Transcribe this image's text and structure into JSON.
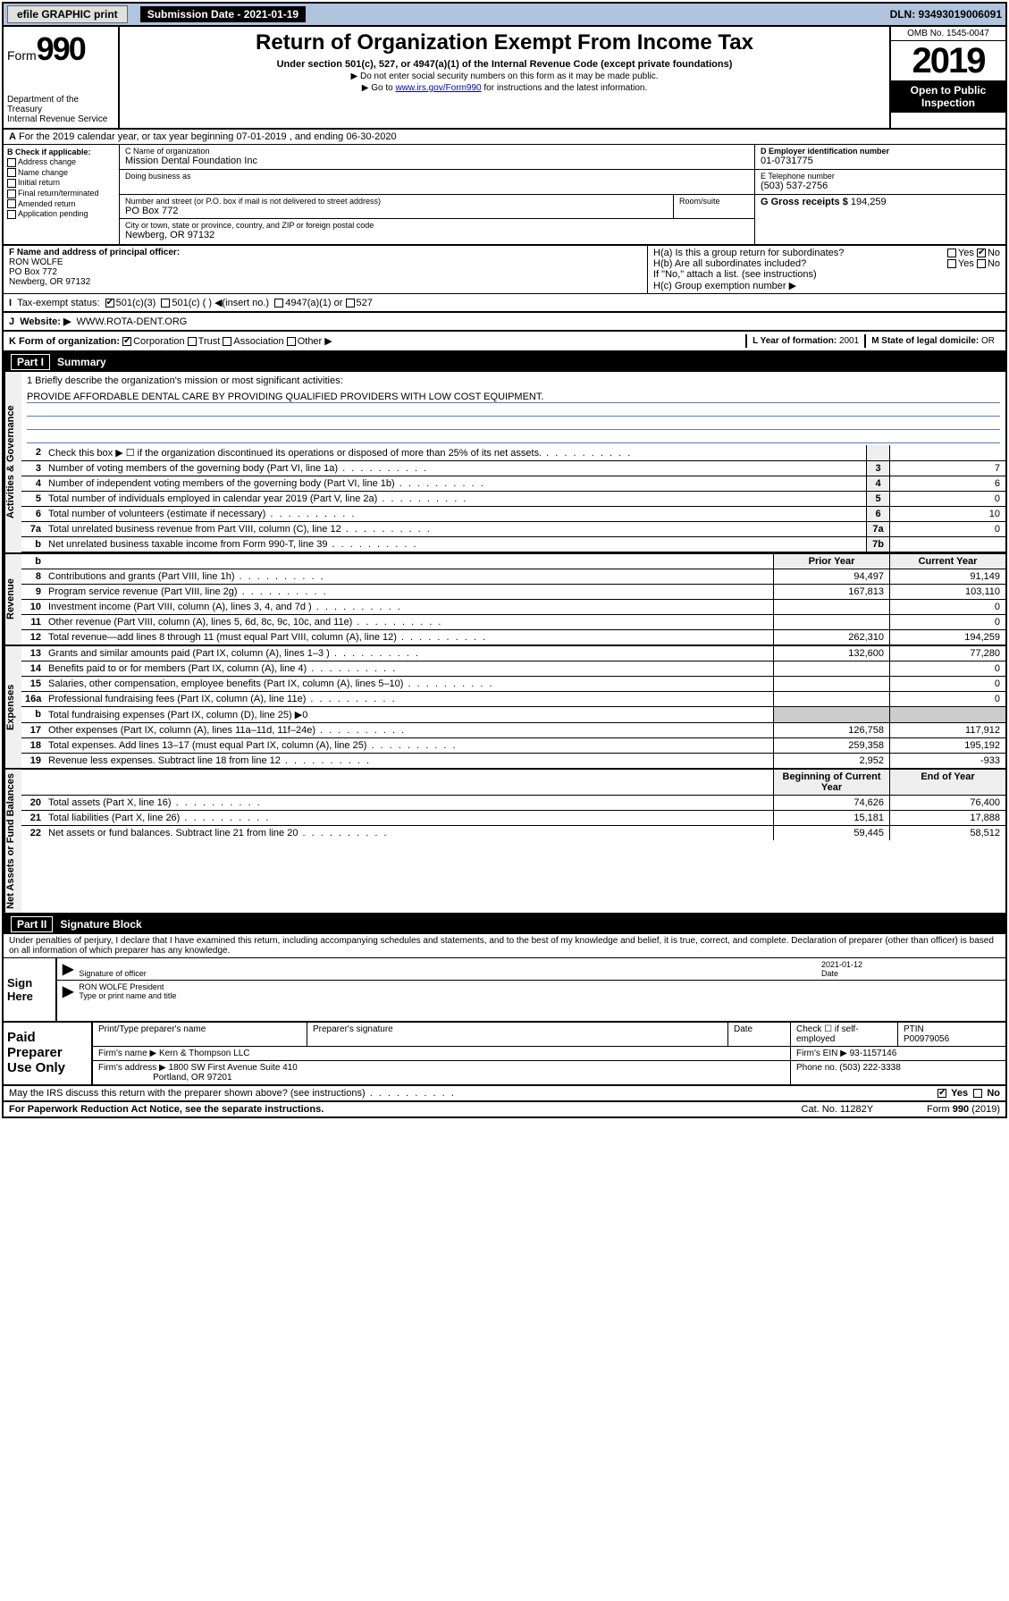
{
  "topbar": {
    "efile": "efile GRAPHIC print",
    "submission_label": "Submission Date - 2021-01-19",
    "dln": "DLN: 93493019006091"
  },
  "header": {
    "form_prefix": "Form",
    "form_number": "990",
    "title": "Return of Organization Exempt From Income Tax",
    "subtitle": "Under section 501(c), 527, or 4947(a)(1) of the Internal Revenue Code (except private foundations)",
    "note1": "▶ Do not enter social security numbers on this form as it may be made public.",
    "note2_pre": "▶ Go to ",
    "note2_link": "www.irs.gov/Form990",
    "note2_post": " for instructions and the latest information.",
    "dept": "Department of the Treasury\nInternal Revenue Service",
    "omb": "OMB No. 1545-0047",
    "year": "2019",
    "open": "Open to Public Inspection"
  },
  "row_a": "For the 2019 calendar year, or tax year beginning 07-01-2019    , and ending 06-30-2020",
  "block_b": {
    "title": "B Check if applicable:",
    "items": [
      "Address change",
      "Name change",
      "Initial return",
      "Final return/terminated",
      "Amended return",
      "Application pending"
    ]
  },
  "block_c": {
    "name_label": "C Name of organization",
    "name": "Mission Dental Foundation Inc",
    "dba_label": "Doing business as",
    "dba": "",
    "addr_label": "Number and street (or P.O. box if mail is not delivered to street address)",
    "addr": "PO Box 772",
    "suite_label": "Room/suite",
    "city_label": "City or town, state or province, country, and ZIP or foreign postal code",
    "city": "Newberg, OR  97132"
  },
  "block_d": {
    "label": "D Employer identification number",
    "value": "01-0731775"
  },
  "block_e": {
    "label": "E Telephone number",
    "value": "(503) 537-2756"
  },
  "block_g": {
    "label": "G Gross receipts $",
    "value": "194,259"
  },
  "block_f": {
    "label": "F  Name and address of principal officer:",
    "name": "RON WOLFE",
    "addr1": "PO Box 772",
    "addr2": "Newberg, OR  97132"
  },
  "block_h": {
    "a": "H(a)  Is this a group return for subordinates?",
    "b": "H(b)  Are all subordinates included?",
    "note": "If \"No,\" attach a list. (see instructions)",
    "c": "H(c)  Group exemption number ▶"
  },
  "row_i": {
    "label": "Tax-exempt status:",
    "opts": [
      "501(c)(3)",
      "501(c) (  ) ◀(insert no.)",
      "4947(a)(1) or",
      "527"
    ]
  },
  "row_j": {
    "label": "Website: ▶",
    "value": "WWW.ROTA-DENT.ORG"
  },
  "row_k": {
    "label": "K Form of organization:",
    "opts": [
      "Corporation",
      "Trust",
      "Association",
      "Other ▶"
    ],
    "l_label": "L Year of formation:",
    "l_value": "2001",
    "m_label": "M State of legal domicile:",
    "m_value": "OR"
  },
  "part1": {
    "num": "Part I",
    "title": "Summary"
  },
  "mission": {
    "q": "1  Briefly describe the organization's mission or most significant activities:",
    "a": "PROVIDE AFFORDABLE DENTAL CARE BY PROVIDING QUALIFIED PROVIDERS WITH LOW COST EQUIPMENT."
  },
  "gov_lines": [
    {
      "n": "2",
      "d": "Check this box ▶ ☐  if the organization discontinued its operations or disposed of more than 25% of its net assets.",
      "box": "",
      "v": ""
    },
    {
      "n": "3",
      "d": "Number of voting members of the governing body (Part VI, line 1a)",
      "box": "3",
      "v": "7"
    },
    {
      "n": "4",
      "d": "Number of independent voting members of the governing body (Part VI, line 1b)",
      "box": "4",
      "v": "6"
    },
    {
      "n": "5",
      "d": "Total number of individuals employed in calendar year 2019 (Part V, line 2a)",
      "box": "5",
      "v": "0"
    },
    {
      "n": "6",
      "d": "Total number of volunteers (estimate if necessary)",
      "box": "6",
      "v": "10"
    },
    {
      "n": "7a",
      "d": "Total unrelated business revenue from Part VIII, column (C), line 12",
      "box": "7a",
      "v": "0"
    },
    {
      "n": "b",
      "d": "Net unrelated business taxable income from Form 990-T, line 39",
      "box": "7b",
      "v": ""
    }
  ],
  "rev_head": {
    "py": "Prior Year",
    "cy": "Current Year"
  },
  "rev_lines": [
    {
      "n": "8",
      "d": "Contributions and grants (Part VIII, line 1h)",
      "py": "94,497",
      "cy": "91,149"
    },
    {
      "n": "9",
      "d": "Program service revenue (Part VIII, line 2g)",
      "py": "167,813",
      "cy": "103,110"
    },
    {
      "n": "10",
      "d": "Investment income (Part VIII, column (A), lines 3, 4, and 7d )",
      "py": "",
      "cy": "0"
    },
    {
      "n": "11",
      "d": "Other revenue (Part VIII, column (A), lines 5, 6d, 8c, 9c, 10c, and 11e)",
      "py": "",
      "cy": "0"
    },
    {
      "n": "12",
      "d": "Total revenue—add lines 8 through 11 (must equal Part VIII, column (A), line 12)",
      "py": "262,310",
      "cy": "194,259"
    }
  ],
  "exp_lines": [
    {
      "n": "13",
      "d": "Grants and similar amounts paid (Part IX, column (A), lines 1–3 )",
      "py": "132,600",
      "cy": "77,280"
    },
    {
      "n": "14",
      "d": "Benefits paid to or for members (Part IX, column (A), line 4)",
      "py": "",
      "cy": "0"
    },
    {
      "n": "15",
      "d": "Salaries, other compensation, employee benefits (Part IX, column (A), lines 5–10)",
      "py": "",
      "cy": "0"
    },
    {
      "n": "16a",
      "d": "Professional fundraising fees (Part IX, column (A), line 11e)",
      "py": "",
      "cy": "0"
    },
    {
      "n": "b",
      "d": "Total fundraising expenses (Part IX, column (D), line 25) ▶0",
      "py": null,
      "cy": null
    },
    {
      "n": "17",
      "d": "Other expenses (Part IX, column (A), lines 11a–11d, 11f–24e)",
      "py": "126,758",
      "cy": "117,912"
    },
    {
      "n": "18",
      "d": "Total expenses. Add lines 13–17 (must equal Part IX, column (A), line 25)",
      "py": "259,358",
      "cy": "195,192"
    },
    {
      "n": "19",
      "d": "Revenue less expenses. Subtract line 18 from line 12",
      "py": "2,952",
      "cy": "-933"
    }
  ],
  "na_head": {
    "py": "Beginning of Current Year",
    "cy": "End of Year"
  },
  "na_lines": [
    {
      "n": "20",
      "d": "Total assets (Part X, line 16)",
      "py": "74,626",
      "cy": "76,400"
    },
    {
      "n": "21",
      "d": "Total liabilities (Part X, line 26)",
      "py": "15,181",
      "cy": "17,888"
    },
    {
      "n": "22",
      "d": "Net assets or fund balances. Subtract line 21 from line 20",
      "py": "59,445",
      "cy": "58,512"
    }
  ],
  "part2": {
    "num": "Part II",
    "title": "Signature Block"
  },
  "penalty": "Under penalties of perjury, I declare that I have examined this return, including accompanying schedules and statements, and to the best of my knowledge and belief, it is true, correct, and complete. Declaration of preparer (other than officer) is based on all information of which preparer has any knowledge.",
  "sign": {
    "here": "Sign Here",
    "date": "2021-01-12",
    "sig_label": "Signature of officer",
    "date_label": "Date",
    "name": "RON WOLFE President",
    "name_label": "Type or print name and title"
  },
  "paid": {
    "label": "Paid Preparer Use Only",
    "h1": "Print/Type preparer's name",
    "h2": "Preparer's signature",
    "h3": "Date",
    "h4_chk": "Check ☐  if self-employed",
    "h5": "PTIN",
    "ptin": "P00979056",
    "firm_label": "Firm's name      ▶",
    "firm": "Kern & Thompson LLC",
    "ein_label": "Firm's EIN ▶",
    "ein": "93-1157146",
    "addr_label": "Firm's address ▶",
    "addr1": "1800 SW First Avenue Suite 410",
    "addr2": "Portland, OR  97201",
    "phone_label": "Phone no.",
    "phone": "(503) 222-3338"
  },
  "foot": {
    "q": "May the IRS discuss this return with the preparer shown above? (see instructions)",
    "yes": "Yes",
    "no": "No",
    "pra": "For Paperwork Reduction Act Notice, see the separate instructions.",
    "cat": "Cat. No. 11282Y",
    "form": "Form 990 (2019)"
  },
  "vtabs": {
    "gov": "Activities & Governance",
    "rev": "Revenue",
    "exp": "Expenses",
    "na": "Net Assets or Fund Balances"
  },
  "colors": {
    "topbar_bg": "#b0c4de",
    "link": "#0000cc",
    "rule": "#5b7bbf"
  }
}
